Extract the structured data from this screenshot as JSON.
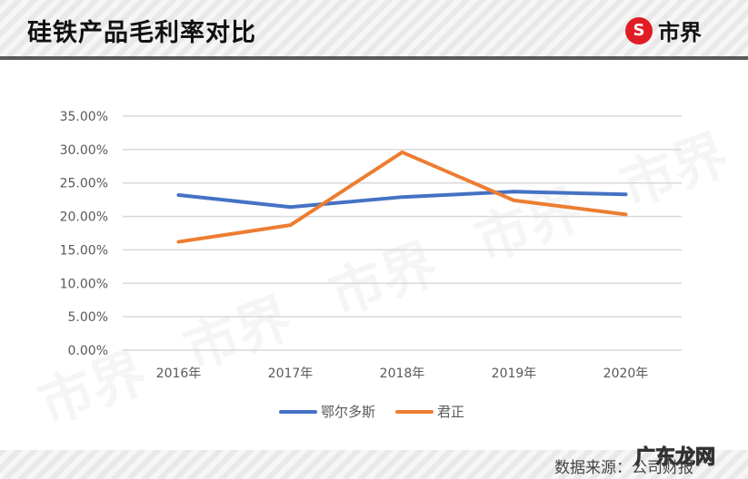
{
  "header": {
    "title": "硅铁产品毛利率对比",
    "logo_glyph": "S",
    "logo_text": "市界",
    "logo_color": "#e01d24"
  },
  "footer": {
    "source": "数据来源：公司财报",
    "site_mark": "广东龙网"
  },
  "watermark_text": "市界",
  "chart_data": {
    "type": "line",
    "title": "硅铁产品毛利率对比",
    "xlabel": "",
    "ylabel": "",
    "categories": [
      "2016年",
      "2017年",
      "2018年",
      "2019年",
      "2020年"
    ],
    "y_ticks": [
      "0.00%",
      "5.00%",
      "10.00%",
      "15.00%",
      "20.00%",
      "25.00%",
      "30.00%",
      "35.00%"
    ],
    "ylim": [
      0,
      35
    ],
    "grid": true,
    "legend_position": "bottom",
    "series": [
      {
        "name": "鄂尔多斯",
        "color": "#4472c4",
        "values": [
          23.2,
          21.4,
          22.9,
          23.7,
          23.3
        ]
      },
      {
        "name": "君正",
        "color": "#ed7d31",
        "values": [
          16.2,
          18.7,
          29.6,
          22.4,
          20.3
        ]
      }
    ]
  }
}
